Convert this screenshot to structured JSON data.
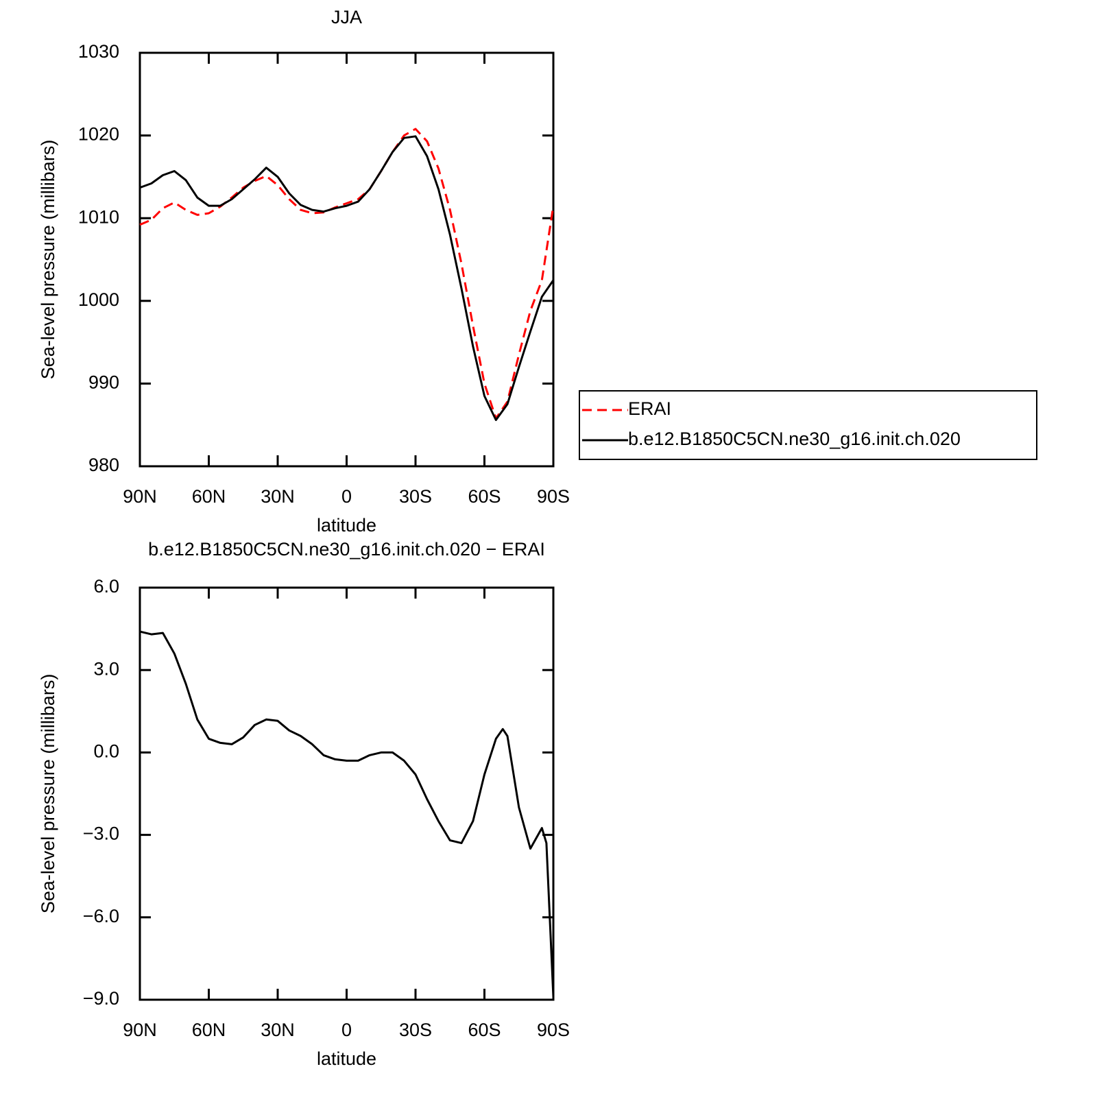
{
  "chart_data": [
    {
      "type": "line",
      "title": "JJA",
      "x_label": "latitude",
      "y_label": "Sea-level pressure (millibars)",
      "x": [
        90,
        85,
        80,
        75,
        70,
        65,
        60,
        55,
        50,
        45,
        40,
        35,
        30,
        25,
        20,
        15,
        10,
        5,
        0,
        -5,
        -10,
        -15,
        -20,
        -25,
        -30,
        -35,
        -40,
        -45,
        -50,
        -55,
        -60,
        -65,
        -70,
        -75,
        -80,
        -85,
        -90
      ],
      "series": [
        {
          "name": "ERAI",
          "color": "#ff0000",
          "dashed": true,
          "values": [
            1009.2,
            1009.8,
            1011.2,
            1011.9,
            1011.0,
            1010.4,
            1010.6,
            1011.4,
            1012.5,
            1013.7,
            1014.5,
            1015.1,
            1014.0,
            1012.3,
            1011.0,
            1010.6,
            1010.7,
            1011.3,
            1011.8,
            1012.3,
            1013.5,
            1015.7,
            1018.0,
            1020.0,
            1020.8,
            1019.3,
            1016.0,
            1011.0,
            1004.5,
            997.0,
            990.0,
            985.8,
            987.8,
            993.5,
            998.8,
            1002.5,
            1011.5
          ]
        },
        {
          "name": "b.e12.B1850C5CN.ne30_g16.init.ch.020",
          "color": "#000000",
          "dashed": false,
          "values": [
            1013.7,
            1014.2,
            1015.2,
            1015.7,
            1014.6,
            1012.5,
            1011.5,
            1011.5,
            1012.3,
            1013.5,
            1014.7,
            1016.1,
            1015.0,
            1013.0,
            1011.6,
            1011.0,
            1010.8,
            1011.2,
            1011.5,
            1012.0,
            1013.5,
            1015.7,
            1018.0,
            1019.7,
            1019.9,
            1017.5,
            1013.5,
            1008.0,
            1001.5,
            994.5,
            988.5,
            985.6,
            987.5,
            992.0,
            996.3,
            1000.5,
            1002.5
          ]
        }
      ],
      "xlim": [
        90,
        -90
      ],
      "xticks": [
        {
          "value": 90,
          "label": "90N"
        },
        {
          "value": 60,
          "label": "60N"
        },
        {
          "value": 30,
          "label": "30N"
        },
        0,
        {
          "value": -30,
          "label": "30S"
        },
        {
          "value": -60,
          "label": "60S"
        },
        {
          "value": -90,
          "label": "90S"
        }
      ],
      "ylim": [
        980,
        1030
      ],
      "yticks": [
        980,
        990,
        1000,
        1010,
        1020,
        1030
      ],
      "legend": "right"
    },
    {
      "type": "line",
      "title": "b.e12.B1850C5CN.ne30_g16.init.ch.020 − ERAI",
      "x_label": "latitude",
      "y_label": "Sea-level pressure (millibars)",
      "x": [
        90,
        85,
        80,
        75,
        70,
        65,
        60,
        55,
        50,
        45,
        40,
        35,
        30,
        25,
        20,
        15,
        10,
        5,
        0,
        -5,
        -10,
        -15,
        -20,
        -25,
        -30,
        -35,
        -40,
        -45,
        -50,
        -55,
        -60,
        -65,
        -68,
        -70,
        -75,
        -80,
        -85,
        -87,
        -90
      ],
      "values": [
        4.4,
        4.3,
        4.35,
        3.6,
        2.5,
        1.2,
        0.5,
        0.35,
        0.3,
        0.55,
        1.0,
        1.2,
        1.15,
        0.8,
        0.6,
        0.3,
        -0.1,
        -0.25,
        -0.3,
        -0.3,
        -0.1,
        0.0,
        0.0,
        -0.3,
        -0.8,
        -1.7,
        -2.5,
        -3.2,
        -3.3,
        -2.5,
        -0.8,
        0.5,
        0.85,
        0.6,
        -2.0,
        -3.5,
        -2.75,
        -3.3,
        -8.9
      ],
      "color": "#000000",
      "xlim": [
        90,
        -90
      ],
      "xticks": [
        {
          "value": 90,
          "label": "90N"
        },
        {
          "value": 60,
          "label": "60N"
        },
        {
          "value": 30,
          "label": "30N"
        },
        0,
        {
          "value": -30,
          "label": "30S"
        },
        {
          "value": -60,
          "label": "60S"
        },
        {
          "value": -90,
          "label": "90S"
        }
      ],
      "ylim": [
        -9,
        6
      ],
      "yticks": [
        {
          "value": -9,
          "label": "−9.0"
        },
        {
          "value": -6,
          "label": "−6.0"
        },
        {
          "value": -3,
          "label": "−3.0"
        },
        {
          "value": 0,
          "label": "0.0"
        },
        {
          "value": 3,
          "label": "3.0"
        },
        {
          "value": 6,
          "label": "6.0"
        }
      ]
    }
  ]
}
